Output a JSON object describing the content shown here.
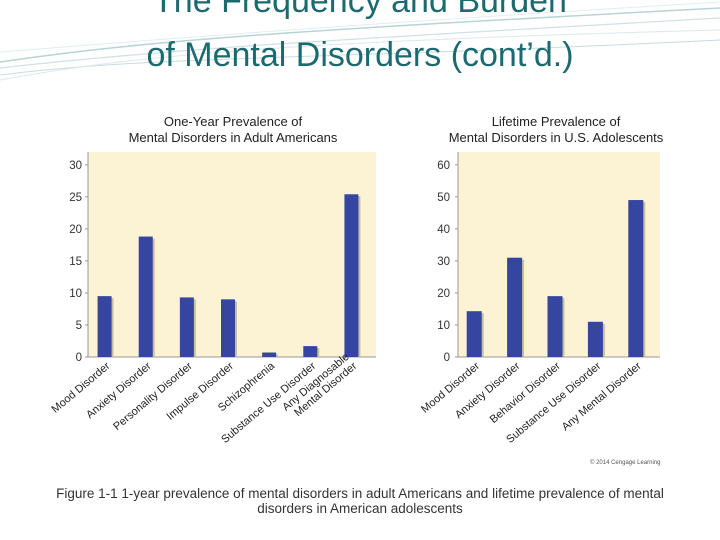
{
  "slide": {
    "title_line1": "The Frequency and Burden",
    "title_line2": "of Mental Disorders (cont’d.)",
    "caption": "Figure 1-1 1-year prevalence of mental disorders in adult Americans and lifetime prevalence of mental disorders in American adolescents",
    "credit": "© 2014 Cengage Learning"
  },
  "colors": {
    "bar": "#3545a0",
    "plot_bg": "#fbf3d4",
    "title": "#1b6a70"
  },
  "chart_data": [
    {
      "type": "bar",
      "title_lines": [
        "One-Year Prevalence of",
        "Mental Disorders in Adult Americans"
      ],
      "categories": [
        "Mood Disorder",
        "Anxiety Disorder",
        "Personality Disorder",
        "Impulse Disorder",
        "Schizophrenia",
        "Substance Use Disorder",
        "Any Diagnosable Mental Disorder"
      ],
      "category_label_lines": [
        [
          "Mood Disorder"
        ],
        [
          "Anxiety Disorder"
        ],
        [
          "Personality Disorder"
        ],
        [
          "Impulse Disorder"
        ],
        [
          "Schizophrenia"
        ],
        [
          "Substance Use Disorder"
        ],
        [
          "Any Diagnosable",
          "Mental Disorder"
        ]
      ],
      "values": [
        9.5,
        18.8,
        9.3,
        9.0,
        0.7,
        1.7,
        25.4
      ],
      "yticks": [
        0,
        5,
        10,
        15,
        20,
        25,
        30
      ],
      "ylim": [
        0,
        32
      ],
      "xlabel": "",
      "ylabel": "",
      "grid": false
    },
    {
      "type": "bar",
      "title_lines": [
        "Lifetime Prevalence of",
        "Mental Disorders in U.S. Adolescents"
      ],
      "categories": [
        "Mood Disorder",
        "Anxiety Disorder",
        "Behavior Disorder",
        "Substance Use Disorder",
        "Any Mental Disorder"
      ],
      "category_label_lines": [
        [
          "Mood Disorder"
        ],
        [
          "Anxiety Disorder"
        ],
        [
          "Behavior Disorder"
        ],
        [
          "Substance Use Disorder"
        ],
        [
          "Any Mental Disorder"
        ]
      ],
      "values": [
        14.3,
        31.0,
        19.0,
        11.0,
        49.0
      ],
      "yticks": [
        0,
        10,
        20,
        30,
        40,
        50,
        60
      ],
      "ylim": [
        0,
        64
      ],
      "xlabel": "",
      "ylabel": "",
      "grid": false
    }
  ]
}
